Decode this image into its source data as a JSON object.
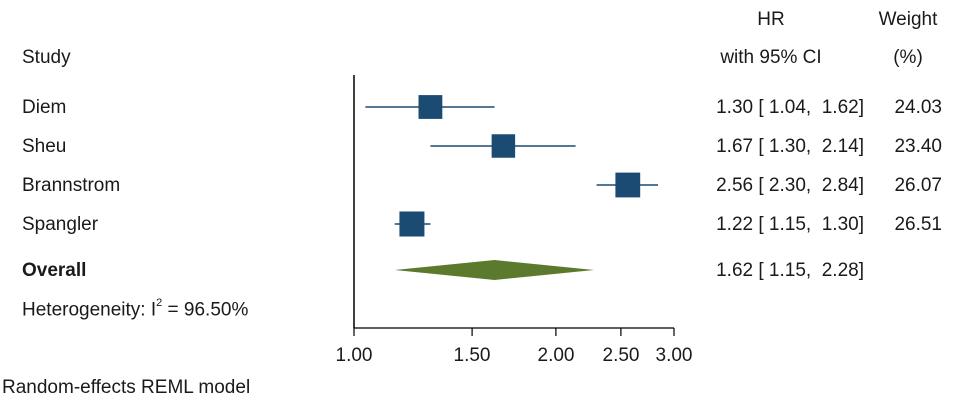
{
  "headers": {
    "study": "Study",
    "hr_line1": "HR",
    "hr_line2": "with 95% CI",
    "weight_line1": "Weight",
    "weight_line2": "(%)"
  },
  "overall_label": "Overall",
  "heterogeneity": {
    "prefix": "Heterogeneity: I",
    "sup": "2",
    "value": " = 96.50%"
  },
  "footnote": "Random-effects REML model",
  "colors": {
    "study_marker": "#1b4a73",
    "ci_line": "#1b4a73",
    "overall_diamond": "#5c7a2e",
    "axis": "#000000"
  },
  "chart_data": {
    "type": "forest",
    "xscale": "log",
    "xlim": [
      1.0,
      3.0
    ],
    "xticks": [
      "1.00",
      "1.50",
      "2.00",
      "2.50",
      "3.00"
    ],
    "xtick_values": [
      1.0,
      1.5,
      2.0,
      2.5,
      3.0
    ],
    "null_line": 1.0,
    "studies": [
      {
        "name": "Diem",
        "hr": 1.3,
        "lo": 1.04,
        "hi": 1.62,
        "ci_text": "1.30 [ 1.04,  1.62]",
        "weight": 24.03,
        "weight_text": "24.03"
      },
      {
        "name": "Sheu",
        "hr": 1.67,
        "lo": 1.3,
        "hi": 2.14,
        "ci_text": "1.67 [ 1.30,  2.14]",
        "weight": 23.4,
        "weight_text": "23.40"
      },
      {
        "name": "Brannstrom",
        "hr": 2.56,
        "lo": 2.3,
        "hi": 2.84,
        "ci_text": "2.56 [ 2.30,  2.84]",
        "weight": 26.07,
        "weight_text": "26.07"
      },
      {
        "name": "Spangler",
        "hr": 1.22,
        "lo": 1.15,
        "hi": 1.3,
        "ci_text": "1.22 [ 1.15,  1.30]",
        "weight": 26.51,
        "weight_text": "26.51"
      }
    ],
    "overall": {
      "hr": 1.62,
      "lo": 1.15,
      "hi": 2.28,
      "ci_text": "1.62 [ 1.15,  2.28]"
    }
  }
}
